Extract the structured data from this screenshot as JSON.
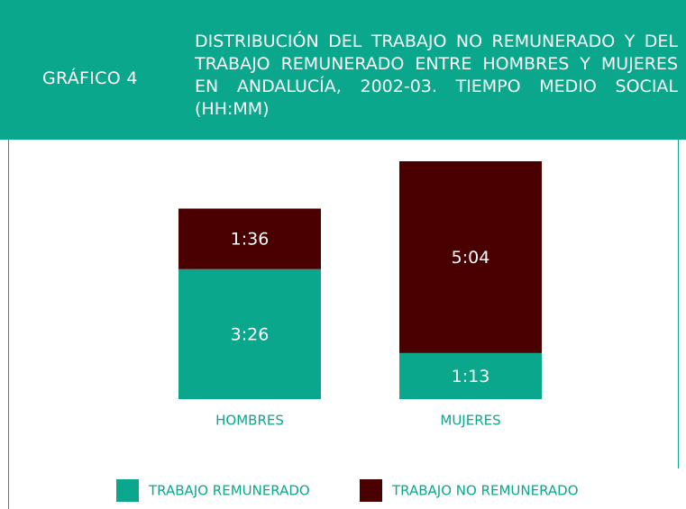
{
  "chart_data": {
    "type": "stacked-bar",
    "label": "GRÁFICO 4",
    "title": "DISTRIBUCIÓN DEL TRABAJO NO REMUNERADO Y DEL TRABAJO REMUNERADO ENTRE HOMBRES Y MUJERES EN ANDALUCÍA, 2002-03. TIEMPO MEDIO SOCIAL (HH:MM)",
    "categories": [
      "HOMBRES",
      "MUJERES"
    ],
    "series": [
      {
        "name": "TRABAJO REMUNERADO",
        "color": "#0aa78d",
        "values": [
          206,
          73
        ],
        "value_labels": [
          "3:26",
          "1:13"
        ]
      },
      {
        "name": "TRABAJO NO REMUNERADO",
        "color": "#4a0000",
        "values": [
          96,
          304
        ],
        "value_labels": [
          "1:36",
          "5:04"
        ]
      }
    ]
  }
}
